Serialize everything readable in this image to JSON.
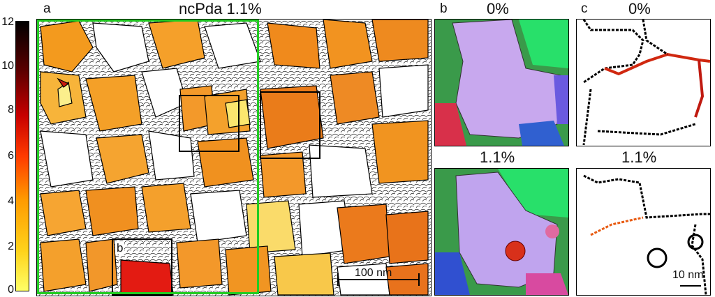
{
  "colorbar": {
    "ticks": [
      "12",
      "10",
      "8",
      "6",
      "4",
      "2",
      "0"
    ],
    "gradient": [
      "#000000",
      "#5a0000",
      "#c80000",
      "#ff3a00",
      "#ff9a00",
      "#ffd21a",
      "#ffff66"
    ]
  },
  "panel_a": {
    "letter": "a",
    "title": "ncPda 1.1%",
    "inset_letter": "b",
    "scale_bar": "100 nm",
    "green_box_color": "#22cc22"
  },
  "panel_b": {
    "letter": "b",
    "top_label": "0%",
    "bottom_label": "1.1%"
  },
  "panel_c": {
    "letter": "c",
    "top_label": "0%",
    "bottom_label": "1.1%",
    "scale_bar": "10 nm"
  }
}
